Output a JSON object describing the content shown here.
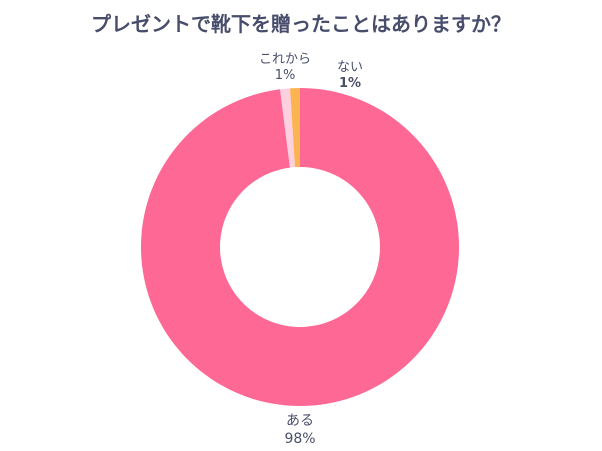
{
  "chart_data": {
    "type": "pie",
    "title": "プレゼントで靴下を贈ったことはありますか？",
    "donut": true,
    "categories": [
      "ある",
      "これから",
      "ない"
    ],
    "values": [
      98,
      1,
      1
    ],
    "labels": [
      "98%",
      "1%",
      "1%"
    ],
    "colors": [
      "#fd6894",
      "#fdd0e0",
      "#fbb450"
    ]
  },
  "title": "プレゼントで靴下を贈ったことはありますか？",
  "slices": [
    {
      "name": "ある",
      "pct": "98%"
    },
    {
      "name": "これから",
      "pct": "1%"
    },
    {
      "name": "ない",
      "pct": "1%"
    }
  ]
}
